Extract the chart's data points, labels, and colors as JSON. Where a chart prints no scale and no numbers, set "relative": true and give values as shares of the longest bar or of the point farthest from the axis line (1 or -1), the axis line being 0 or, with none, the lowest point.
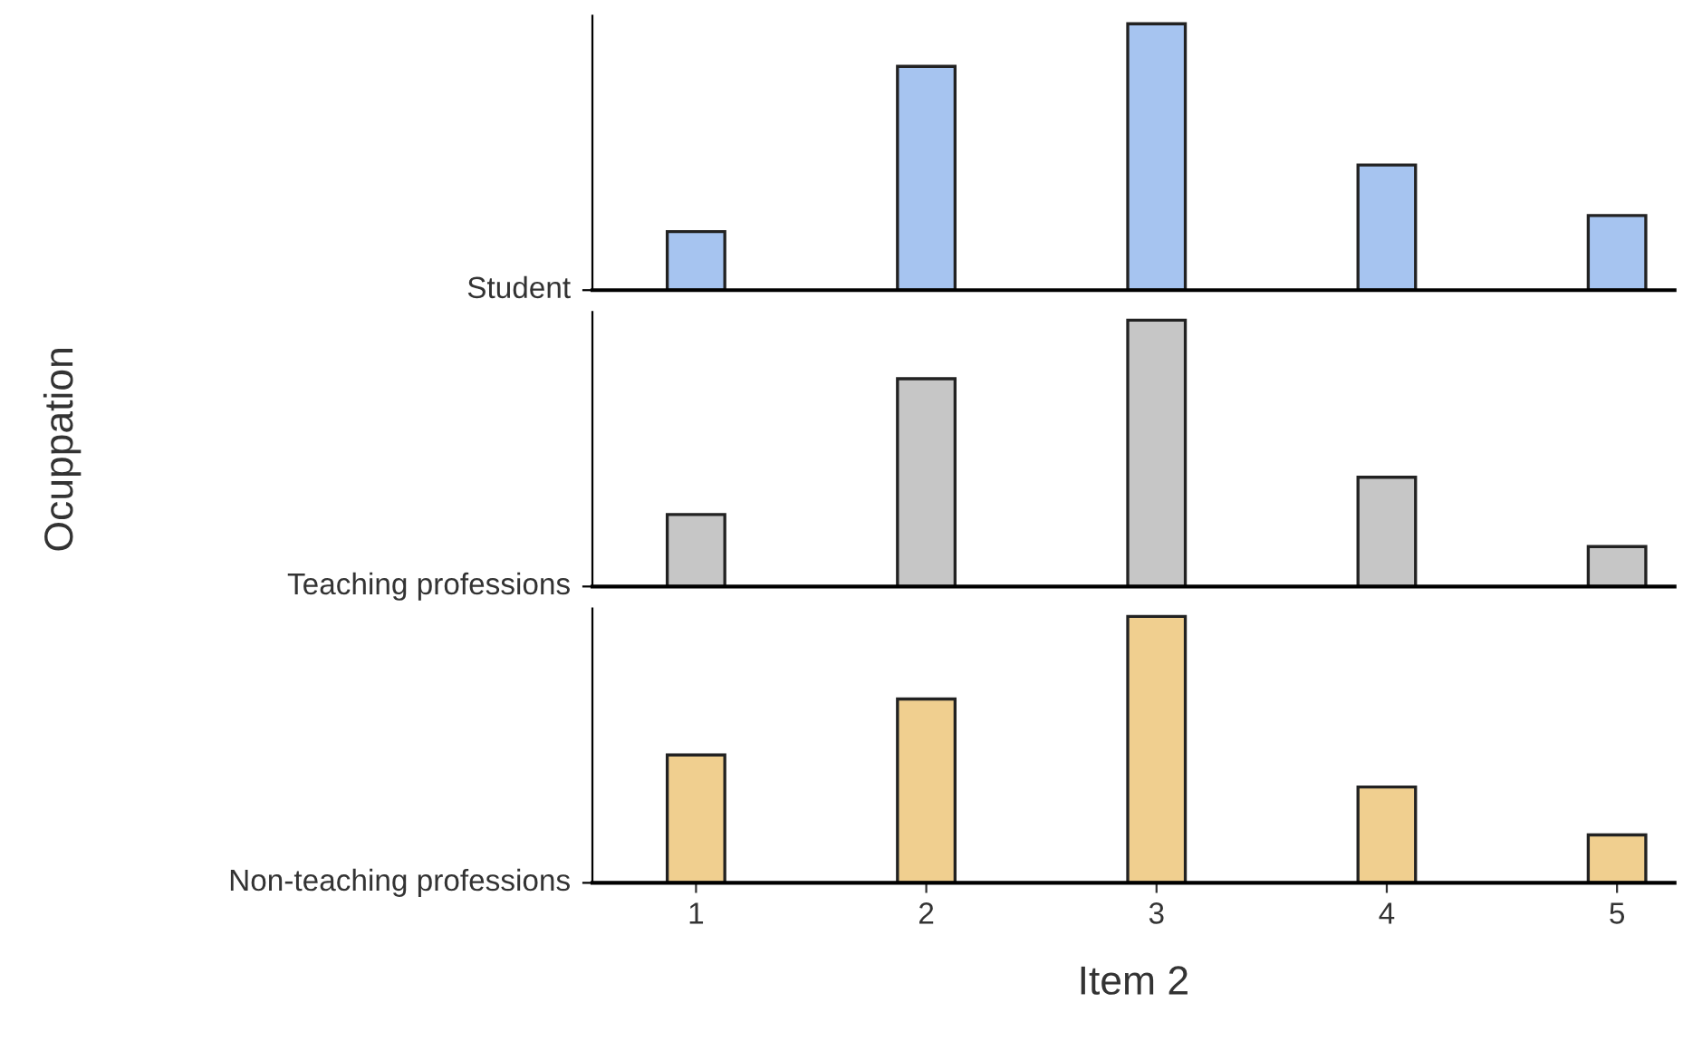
{
  "chart_data": [
    {
      "type": "bar",
      "x": [
        1,
        2,
        3,
        4,
        5
      ],
      "relative": true,
      "ylabel": "Student",
      "color": "#a6c4f0",
      "values": [
        0.22,
        0.84,
        1,
        0.47,
        0.28
      ],
      "xlim": [
        0.55,
        5.25
      ],
      "tick_labels": false
    },
    {
      "type": "bar",
      "x": [
        1,
        2,
        3,
        4,
        5
      ],
      "relative": true,
      "ylabel": "Teaching professions",
      "color": "#c6c6c6",
      "values": [
        0.27,
        0.78,
        1,
        0.41,
        0.15
      ],
      "xlim": [
        0.55,
        5.25
      ],
      "tick_labels": false,
      "annotations": [
        "Ocuppation"
      ]
    },
    {
      "type": "bar",
      "x": [
        1,
        2,
        3,
        4,
        5
      ],
      "relative": true,
      "ylabel": "Non-teaching professions",
      "color": "#f0cf8f",
      "values": [
        0.48,
        0.69,
        1,
        0.36,
        0.18
      ],
      "xlim": [
        0.55,
        5.25
      ],
      "xticks": [
        1,
        2,
        3,
        4,
        5
      ],
      "xlabel": "Item 2",
      "tick_labels": "x"
    }
  ]
}
